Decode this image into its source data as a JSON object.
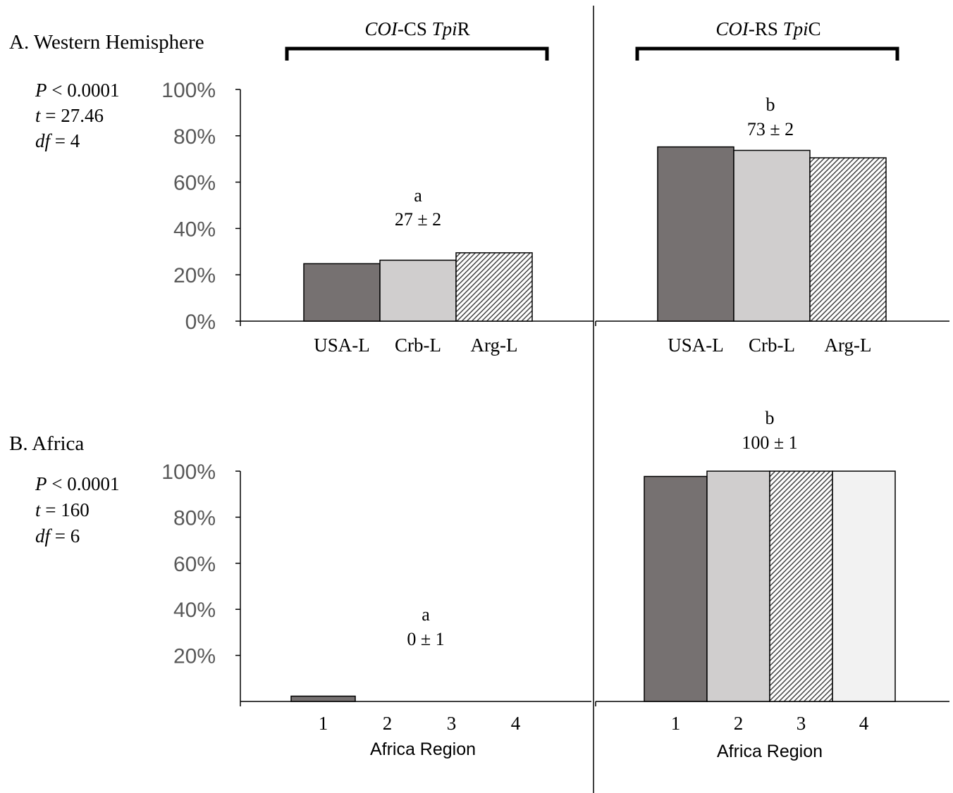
{
  "colors": {
    "dark_gray": "#767171",
    "light_gray": "#d0cece",
    "hatched": "#444444",
    "very_light": "#f2f2f2",
    "axis": "#000000",
    "tick_text": "#595959"
  },
  "groups": {
    "left": {
      "pre": "COI",
      "mid": "-CS ",
      "it2": "Tpi",
      "post": "R"
    },
    "right": {
      "pre": "COI",
      "mid": "-RS ",
      "it2": "Tpi",
      "post": "C"
    }
  },
  "chart_data": [
    {
      "panel_title": "A. Western Hemisphere",
      "type": "bar",
      "ylim": [
        0,
        100
      ],
      "y_ticks": [
        "0%",
        "20%",
        "40%",
        "60%",
        "80%",
        "100%"
      ],
      "stats": {
        "p_sym": "P",
        "p_rest": " < 0.0001",
        "t_sym": "t",
        "t_rest": " = 27.46",
        "df_sym": "df",
        "df_rest": " = 4"
      },
      "xlabel": "",
      "subcharts": [
        {
          "group": "left",
          "categories": [
            "USA-L",
            "Crb-L",
            "Arg-L"
          ],
          "values": [
            24.8,
            26.3,
            29.5
          ],
          "fills": [
            "dark_gray",
            "light_gray",
            "hatched"
          ],
          "annotation": {
            "letter": "a",
            "value": "27 ± 2"
          }
        },
        {
          "group": "right",
          "categories": [
            "USA-L",
            "Crb-L",
            "Arg-L"
          ],
          "values": [
            75.2,
            73.7,
            70.5
          ],
          "fills": [
            "dark_gray",
            "light_gray",
            "hatched"
          ],
          "annotation": {
            "letter": "b",
            "value": "73 ± 2"
          }
        }
      ]
    },
    {
      "panel_title": "B. Africa",
      "type": "bar",
      "ylim": [
        0,
        100
      ],
      "y_ticks": [
        "20%",
        "40%",
        "60%",
        "80%",
        "100%"
      ],
      "stats": {
        "p_sym": "P",
        "p_rest": " < 0.0001",
        "t_sym": "t",
        "t_rest": " = 160",
        "df_sym": "df",
        "df_rest": " = 6"
      },
      "xlabel": "Africa Region",
      "subcharts": [
        {
          "group": "left",
          "categories": [
            "1",
            "2",
            "3",
            "4"
          ],
          "values": [
            2.3,
            0,
            0,
            0
          ],
          "fills": [
            "dark_gray",
            "light_gray",
            "hatched",
            "very_light"
          ],
          "annotation": {
            "letter": "a",
            "value": "0 ± 1"
          }
        },
        {
          "group": "right",
          "categories": [
            "1",
            "2",
            "3",
            "4"
          ],
          "values": [
            97.7,
            100,
            100,
            100
          ],
          "fills": [
            "dark_gray",
            "light_gray",
            "hatched",
            "very_light"
          ],
          "annotation": {
            "letter": "b",
            "value": "100 ± 1"
          }
        }
      ]
    }
  ]
}
